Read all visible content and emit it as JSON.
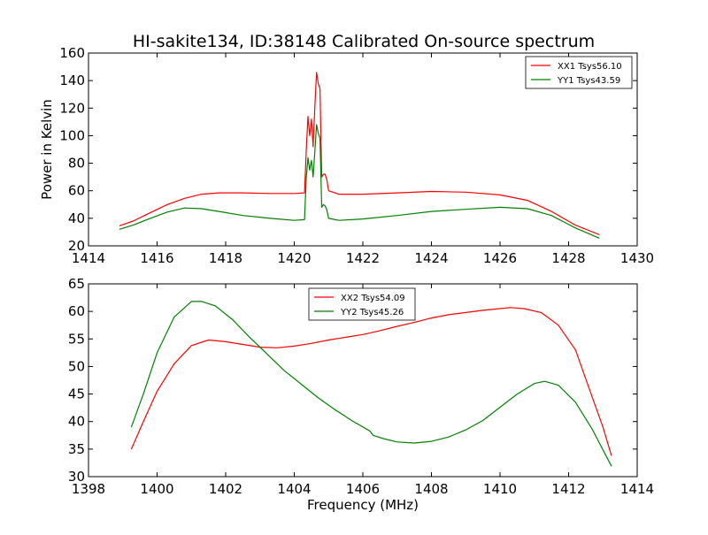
{
  "chart_data": [
    {
      "type": "line",
      "title": "HI-sakite134, ID:38148 Calibrated On-source spectrum",
      "xlabel": "",
      "ylabel": "Power in Kelvin",
      "xlim": [
        1414,
        1430
      ],
      "ylim": [
        20,
        160
      ],
      "xticks": [
        "1414",
        "1416",
        "1418",
        "1420",
        "1422",
        "1424",
        "1426",
        "1428",
        "1430"
      ],
      "yticks": [
        "20",
        "40",
        "60",
        "80",
        "100",
        "120",
        "140",
        "160"
      ],
      "grid": false,
      "legend_position": "top-right",
      "series": [
        {
          "name": "XX1 Tsys56.10",
          "color": "#ff0000",
          "points": [
            [
              1414.9,
              34.5
            ],
            [
              1415.3,
              38
            ],
            [
              1415.8,
              44
            ],
            [
              1416.3,
              50
            ],
            [
              1416.8,
              54.5
            ],
            [
              1417.3,
              57.5
            ],
            [
              1417.8,
              58.5
            ],
            [
              1418.5,
              58.5
            ],
            [
              1419.3,
              58
            ],
            [
              1420.0,
              58
            ],
            [
              1420.3,
              58.5
            ],
            [
              1420.35,
              90
            ],
            [
              1420.4,
              114
            ],
            [
              1420.45,
              100
            ],
            [
              1420.5,
              112
            ],
            [
              1420.55,
              92
            ],
            [
              1420.6,
              120
            ],
            [
              1420.65,
              146
            ],
            [
              1420.7,
              138
            ],
            [
              1420.75,
              134
            ],
            [
              1420.8,
              70
            ],
            [
              1420.85,
              72
            ],
            [
              1420.9,
              72
            ],
            [
              1420.95,
              68
            ],
            [
              1421.0,
              60
            ],
            [
              1421.3,
              57.5
            ],
            [
              1422.0,
              57.5
            ],
            [
              1423.0,
              58.5
            ],
            [
              1424.0,
              59.5
            ],
            [
              1425.0,
              59
            ],
            [
              1426.0,
              57
            ],
            [
              1426.8,
              53
            ],
            [
              1427.5,
              45
            ],
            [
              1428.2,
              35
            ],
            [
              1428.9,
              28
            ]
          ]
        },
        {
          "name": "YY1 Tsys43.59",
          "color": "#008000",
          "points": [
            [
              1414.9,
              32
            ],
            [
              1415.3,
              35
            ],
            [
              1415.8,
              40
            ],
            [
              1416.3,
              44.5
            ],
            [
              1416.8,
              47.5
            ],
            [
              1417.3,
              47
            ],
            [
              1417.8,
              45
            ],
            [
              1418.5,
              42
            ],
            [
              1419.3,
              40
            ],
            [
              1420.0,
              38.5
            ],
            [
              1420.3,
              39
            ],
            [
              1420.35,
              70
            ],
            [
              1420.4,
              84
            ],
            [
              1420.45,
              75
            ],
            [
              1420.5,
              82
            ],
            [
              1420.55,
              70
            ],
            [
              1420.6,
              88
            ],
            [
              1420.65,
              108
            ],
            [
              1420.7,
              102
            ],
            [
              1420.75,
              98
            ],
            [
              1420.8,
              48
            ],
            [
              1420.85,
              50
            ],
            [
              1420.9,
              49
            ],
            [
              1420.95,
              46
            ],
            [
              1421.0,
              40
            ],
            [
              1421.3,
              38.5
            ],
            [
              1422.0,
              39.5
            ],
            [
              1423.0,
              42
            ],
            [
              1424.0,
              45
            ],
            [
              1425.0,
              46.5
            ],
            [
              1426.0,
              48
            ],
            [
              1426.8,
              47
            ],
            [
              1427.5,
              42
            ],
            [
              1428.2,
              33
            ],
            [
              1428.9,
              25.5
            ]
          ]
        }
      ]
    },
    {
      "type": "line",
      "title": "",
      "xlabel": "Frequency (MHz)",
      "ylabel": "",
      "xlim": [
        1398,
        1414
      ],
      "ylim": [
        30,
        65
      ],
      "xticks": [
        "1398",
        "1400",
        "1402",
        "1404",
        "1406",
        "1408",
        "1410",
        "1412",
        "1414"
      ],
      "yticks": [
        "30",
        "35",
        "40",
        "45",
        "50",
        "55",
        "60",
        "65"
      ],
      "grid": false,
      "legend_position": "top-center",
      "series": [
        {
          "name": "XX2 Tsys54.09",
          "color": "#ff0000",
          "points": [
            [
              1399.25,
              35
            ],
            [
              1399.6,
              40
            ],
            [
              1400.0,
              45.5
            ],
            [
              1400.5,
              50.5
            ],
            [
              1401.0,
              53.8
            ],
            [
              1401.5,
              54.8
            ],
            [
              1402.0,
              54.5
            ],
            [
              1402.5,
              54
            ],
            [
              1403.0,
              53.5
            ],
            [
              1403.5,
              53.4
            ],
            [
              1404.0,
              53.7
            ],
            [
              1404.5,
              54.2
            ],
            [
              1405.0,
              54.8
            ],
            [
              1405.5,
              55.3
            ],
            [
              1406.0,
              55.8
            ],
            [
              1406.5,
              56.5
            ],
            [
              1407.0,
              57.3
            ],
            [
              1407.5,
              58
            ],
            [
              1408.0,
              58.8
            ],
            [
              1408.5,
              59.4
            ],
            [
              1409.0,
              59.8
            ],
            [
              1409.5,
              60.2
            ],
            [
              1410.0,
              60.5
            ],
            [
              1410.3,
              60.7
            ],
            [
              1410.7,
              60.5
            ],
            [
              1411.2,
              59.8
            ],
            [
              1411.7,
              57.5
            ],
            [
              1412.2,
              53
            ],
            [
              1412.6,
              46
            ],
            [
              1413.0,
              39
            ],
            [
              1413.25,
              33.8
            ]
          ]
        },
        {
          "name": "YY2 Tsys45.26",
          "color": "#008000",
          "points": [
            [
              1399.25,
              39
            ],
            [
              1399.6,
              45
            ],
            [
              1400.0,
              52.5
            ],
            [
              1400.5,
              59
            ],
            [
              1401.0,
              61.8
            ],
            [
              1401.3,
              61.8
            ],
            [
              1401.7,
              61
            ],
            [
              1402.2,
              58.5
            ],
            [
              1402.7,
              55.3
            ],
            [
              1403.2,
              52.3
            ],
            [
              1403.7,
              49.3
            ],
            [
              1404.2,
              46.8
            ],
            [
              1404.7,
              44.3
            ],
            [
              1405.2,
              42.1
            ],
            [
              1405.7,
              40.1
            ],
            [
              1406.2,
              38.3
            ],
            [
              1406.3,
              37.5
            ],
            [
              1406.6,
              36.9
            ],
            [
              1407.0,
              36.3
            ],
            [
              1407.5,
              36.1
            ],
            [
              1408.0,
              36.4
            ],
            [
              1408.5,
              37.2
            ],
            [
              1409.0,
              38.5
            ],
            [
              1409.5,
              40.2
            ],
            [
              1410.0,
              42.6
            ],
            [
              1410.5,
              45
            ],
            [
              1411.0,
              46.9
            ],
            [
              1411.3,
              47.3
            ],
            [
              1411.7,
              46.6
            ],
            [
              1412.2,
              43.5
            ],
            [
              1412.7,
              38.5
            ],
            [
              1413.25,
              31.9
            ]
          ]
        }
      ]
    }
  ]
}
